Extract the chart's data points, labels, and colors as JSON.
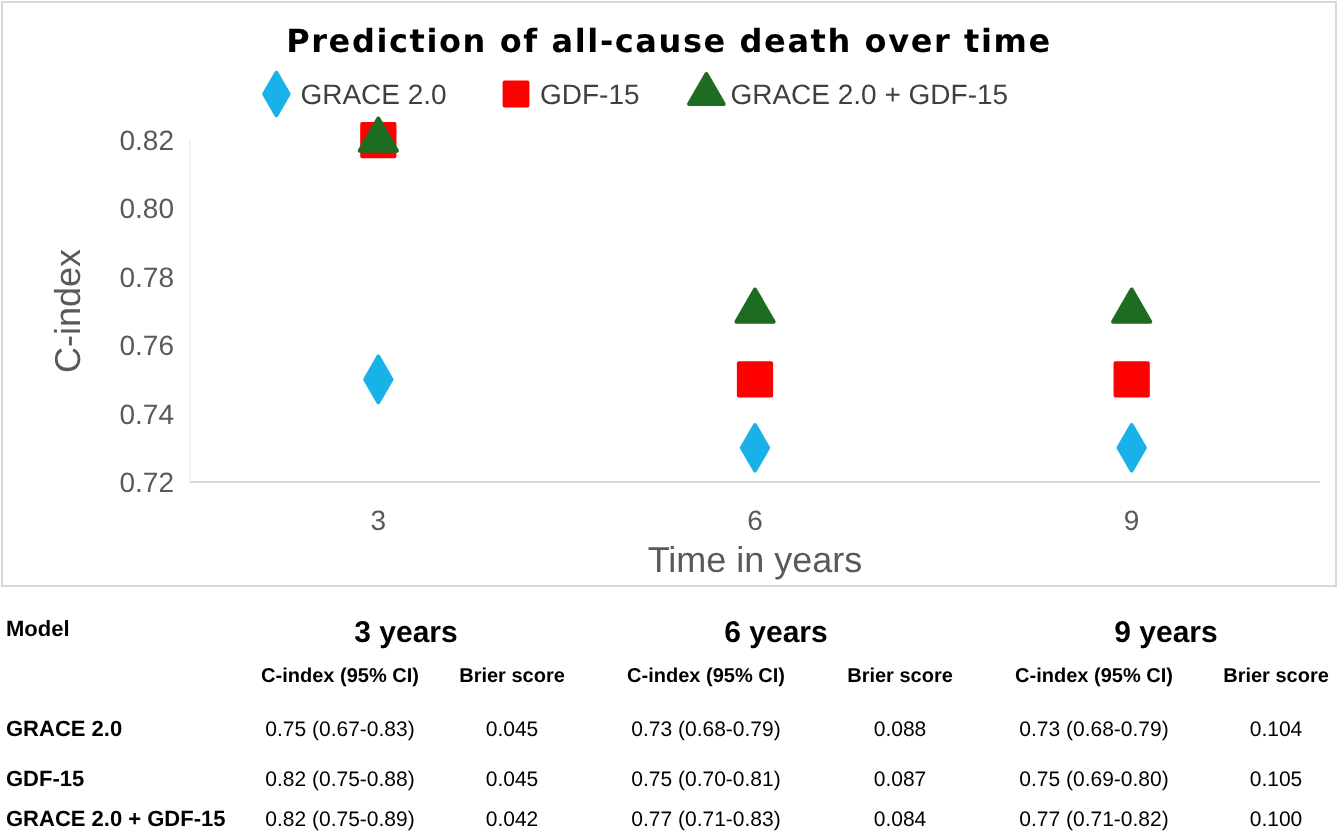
{
  "chart_data": [
    {
      "type": "scatter",
      "title": "Prediction of all-cause death over time",
      "xlabel": "Time in years",
      "ylabel": "C-index",
      "categories": [
        "3",
        "6",
        "9"
      ],
      "ylim": [
        0.72,
        0.82
      ],
      "yticks": [
        {
          "value": 0.72,
          "label": "0.72"
        },
        {
          "value": 0.74,
          "label": "0.74"
        },
        {
          "value": 0.76,
          "label": "0.76"
        },
        {
          "value": 0.78,
          "label": "0.78"
        },
        {
          "value": 0.8,
          "label": "0.80"
        },
        {
          "value": 0.82,
          "label": "0.82"
        }
      ],
      "grid": false,
      "legend": "top",
      "series": [
        {
          "name": "GRACE 2.0",
          "color": "#19b2e8",
          "marker": "diamond",
          "values": [
            0.75,
            0.73,
            0.73
          ]
        },
        {
          "name": "GDF-15",
          "color": "#ff0000",
          "marker": "square",
          "values": [
            0.82,
            0.75,
            0.75
          ]
        },
        {
          "name": "GRACE 2.0 + GDF-15",
          "color": "#1e6b22",
          "marker": "triangle",
          "values": [
            0.82,
            0.77,
            0.77
          ]
        }
      ]
    },
    {
      "type": "other",
      "annotations": [
        "Model",
        "3 years",
        "6 years",
        "9 years",
        "C-index (95% CI)",
        "Brier score",
        "C-index (95% CI)",
        "Brier score",
        "C-index (95% CI)",
        "Brier score",
        "GRACE 2.0",
        "0.75 (0.67-0.83)",
        "0.045",
        "0.73 (0.68-0.79)",
        "0.088",
        "0.73 (0.68-0.79)",
        "0.104",
        "GDF-15",
        "0.82 (0.75-0.88)",
        "0.045",
        "0.75 (0.70-0.81)",
        "0.087",
        "0.75 (0.69-0.80)",
        "0.105",
        "GRACE 2.0 + GDF-15",
        "0.82 (0.75-0.89)",
        "0.042",
        "0.77 (0.71-0.83)",
        "0.084",
        "0.77 (0.71-0.82)",
        "0.100"
      ]
    }
  ]
}
